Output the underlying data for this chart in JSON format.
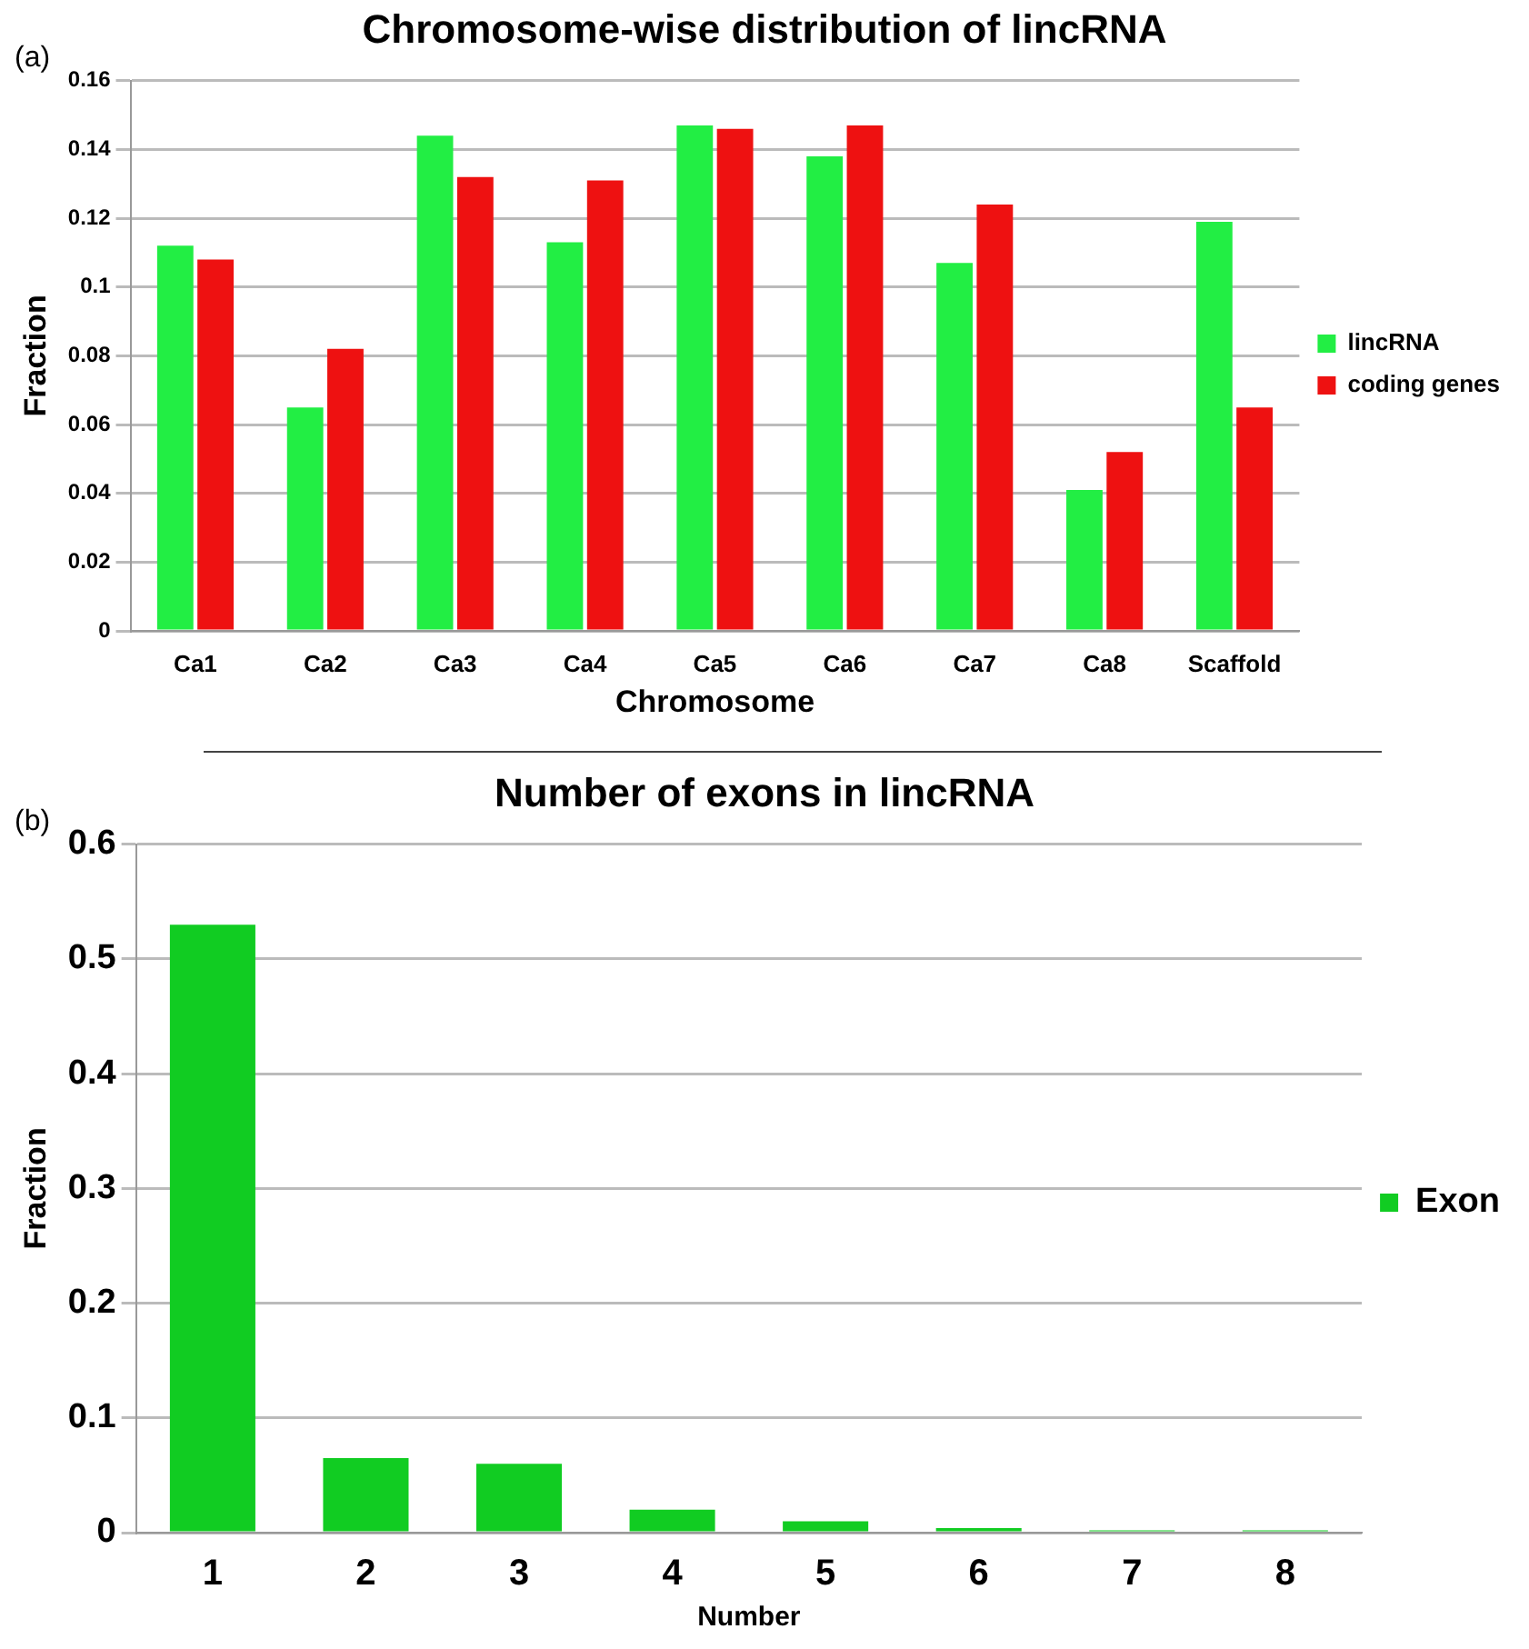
{
  "chart_data": [
    {
      "type": "bar",
      "title": "Chromosome-wise distribution of lincRNA",
      "xlabel": "Chromosome",
      "ylabel": "Fraction",
      "annotations": [
        "(a)"
      ],
      "categories": [
        "Ca1",
        "Ca2",
        "Ca3",
        "Ca4",
        "Ca5",
        "Ca6",
        "Ca7",
        "Ca8",
        "Scaffold"
      ],
      "series": [
        {
          "name": "lincRNA",
          "color": "#22ee44",
          "values": [
            0.112,
            0.065,
            0.144,
            0.113,
            0.147,
            0.138,
            0.107,
            0.041,
            0.119
          ]
        },
        {
          "name": "coding genes",
          "color": "#ee1111",
          "values": [
            0.108,
            0.082,
            0.132,
            0.131,
            0.146,
            0.147,
            0.124,
            0.052,
            0.065
          ]
        }
      ],
      "ylim": [
        0,
        0.16
      ],
      "yticks": [
        0,
        0.02,
        0.04,
        0.06,
        0.08,
        0.1,
        0.12,
        0.14,
        0.16
      ],
      "grid": "y",
      "legend": "right"
    },
    {
      "type": "bar",
      "title": "Number of exons in lincRNA",
      "xlabel": "Number",
      "ylabel": "Fraction",
      "annotations": [
        "(b)"
      ],
      "categories": [
        "1",
        "2",
        "3",
        "4",
        "5",
        "6",
        "7",
        "8"
      ],
      "series": [
        {
          "name": "Exon",
          "color": "#11cc22",
          "values": [
            0.53,
            0.065,
            0.06,
            0.02,
            0.01,
            0.004,
            0.002,
            0.002
          ]
        }
      ],
      "ylim": [
        0,
        0.6
      ],
      "yticks": [
        0,
        0.1,
        0.2,
        0.3,
        0.4,
        0.5,
        0.6
      ],
      "grid": "y",
      "legend": "right"
    }
  ]
}
